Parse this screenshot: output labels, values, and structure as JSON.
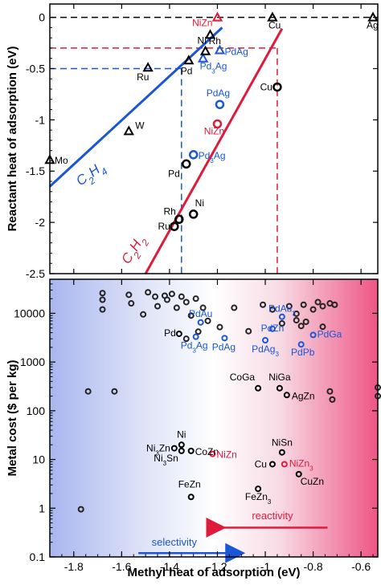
{
  "chart_data": [
    {
      "type": "scatter",
      "xlabel": "",
      "ylabel": "Reactant heat of adsorption (eV)",
      "xlim": [
        -1.9,
        -0.53
      ],
      "ylim": [
        -2.5,
        0.13
      ],
      "yticks": [
        "0",
        "-0.5",
        "-1",
        "-1.5",
        "-2",
        "-2.5"
      ],
      "ytick_values": [
        0,
        -0.5,
        -1,
        -1.5,
        -2,
        -2.5
      ],
      "ethylene_series": {
        "name": "C2H4",
        "label_main": "C",
        "label_sub1": "2",
        "label_mid": "H",
        "label_sub2": "4",
        "color": "#1a56d6",
        "points": [
          {
            "label": "Mo",
            "x": -1.9,
            "y": -1.39,
            "color": "#000000"
          },
          {
            "label": "W",
            "x": -1.57,
            "y": -1.11,
            "color": "#000000"
          },
          {
            "label": "Ru",
            "x": -1.49,
            "y": -0.49,
            "color": "#000000"
          },
          {
            "label": "Pd",
            "x": -1.32,
            "y": -0.42,
            "color": "#000000"
          },
          {
            "label": "Pd3Ag",
            "label_main": "Pd",
            "label_sub": "3",
            "label_tail": "Ag",
            "x": -1.26,
            "y": -0.4,
            "color": "#1a56d6"
          },
          {
            "label": "Rh",
            "x": -1.25,
            "y": -0.33,
            "color": "#000000"
          },
          {
            "label": "PdAg",
            "x": -1.19,
            "y": -0.32,
            "color": "#1a56d6"
          },
          {
            "label": "Ni",
            "x": -1.23,
            "y": -0.17,
            "color": "#000000"
          },
          {
            "label": "NiZn",
            "x": -1.2,
            "y": 0.0,
            "color": "#e01a3a"
          },
          {
            "label": "Cu",
            "x": -0.97,
            "y": 0.0,
            "color": "#000000"
          },
          {
            "label": "Ag",
            "x": -0.55,
            "y": 0.0,
            "color": "#000000"
          }
        ]
      },
      "acetylene_series": {
        "name": "C2H2",
        "label_main": "C",
        "label_sub1": "2",
        "label_mid": "H",
        "label_sub2": "2",
        "color": "#e01a3a",
        "points": [
          {
            "label": "Ru",
            "x": -1.38,
            "y": -2.04,
            "color": "#000000"
          },
          {
            "label": "Rh",
            "x": -1.36,
            "y": -1.97,
            "color": "#000000"
          },
          {
            "label": "Ni",
            "x": -1.3,
            "y": -1.92,
            "color": "#000000"
          },
          {
            "label": "Pd",
            "x": -1.33,
            "y": -1.43,
            "color": "#000000"
          },
          {
            "label": "Pd3Ag",
            "label_main": "Pd",
            "label_sub": "3",
            "label_tail": "Ag",
            "x": -1.3,
            "y": -1.34,
            "color": "#1a56d6"
          },
          {
            "label": "NiZn",
            "x": -1.2,
            "y": -1.04,
            "color": "#e01a3a"
          },
          {
            "label": "PdAg",
            "x": -1.19,
            "y": -0.85,
            "color": "#1a56d6"
          },
          {
            "label": "Cu",
            "x": -0.95,
            "y": -0.68,
            "color": "#000000"
          }
        ]
      }
    },
    {
      "type": "scatter",
      "xlabel": "Methyl heat of adsorption (eV)",
      "ylabel": "Metal cost ($ per kg)",
      "xlim": [
        -1.9,
        -0.53
      ],
      "ylim": [
        0.1,
        50000
      ],
      "yscale": "log",
      "xticks": [
        "-1.8",
        "-1.6",
        "-1.4",
        "-1.2",
        "-1",
        "-0.8",
        "-0.6"
      ],
      "xtick_values": [
        -1.8,
        -1.6,
        -1.4,
        -1.2,
        -1,
        -0.8,
        -0.6
      ],
      "yticks": [
        "0.1",
        "1",
        "10",
        "100",
        "1000",
        "10000"
      ],
      "ytick_values": [
        0.1,
        1,
        10,
        100,
        1000,
        10000
      ],
      "labeled_points": [
        {
          "label": "PdAu",
          "x": -1.27,
          "y": 6500,
          "color": "#1a56d6"
        },
        {
          "label": "PdAu3",
          "label_main": "PdAu",
          "label_sub": "3",
          "label_tail": "",
          "x": -0.93,
          "y": 8500,
          "color": "#1a56d6"
        },
        {
          "label": "Pd",
          "x": -1.36,
          "y": 3800,
          "color": "#000000"
        },
        {
          "label": "Pd3Ag",
          "label_main": "Pd",
          "label_sub": "3",
          "label_tail": "Ag",
          "x": -1.29,
          "y": 3300,
          "color": "#1a56d6"
        },
        {
          "label": "PdAg",
          "x": -1.17,
          "y": 3100,
          "color": "#1a56d6"
        },
        {
          "label": "PdZn",
          "x": -0.97,
          "y": 4800,
          "color": "#1a56d6"
        },
        {
          "label": "PdGa",
          "x": -0.8,
          "y": 3600,
          "color": "#1a56d6"
        },
        {
          "label": "PdAg3",
          "label_main": "PdAg",
          "label_sub": "3",
          "label_tail": "",
          "x": -1.0,
          "y": 2800,
          "color": "#1a56d6"
        },
        {
          "label": "PdPb",
          "x": -0.85,
          "y": 2300,
          "color": "#1a56d6"
        },
        {
          "label": "CoGa",
          "x": -1.03,
          "y": 290,
          "color": "#000000"
        },
        {
          "label": "NiGa",
          "x": -0.94,
          "y": 290,
          "color": "#000000"
        },
        {
          "label": "AgZn",
          "x": -0.91,
          "y": 210,
          "color": "#000000"
        },
        {
          "label": "Ni",
          "x": -1.35,
          "y": 20,
          "color": "#000000"
        },
        {
          "label": "Ni3Zn",
          "label_main": "Ni",
          "label_sub": "3",
          "label_tail": "Zn",
          "x": -1.38,
          "y": 17,
          "color": "#000000"
        },
        {
          "label": "CoZn",
          "x": -1.31,
          "y": 15,
          "color": "#000000"
        },
        {
          "label": "Ni3Sn",
          "label_main": "Ni",
          "label_sub": "3",
          "label_tail": "Sn",
          "x": -1.35,
          "y": 15,
          "color": "#000000"
        },
        {
          "label": "NiZn",
          "x": -1.22,
          "y": 13,
          "color": "#e01a3a"
        },
        {
          "label": "NiSn",
          "x": -0.93,
          "y": 14,
          "color": "#000000"
        },
        {
          "label": "Cu",
          "x": -0.97,
          "y": 8,
          "color": "#000000"
        },
        {
          "label": "NiZn3",
          "label_main": "NiZn",
          "label_sub": "3",
          "label_tail": "",
          "x": -0.92,
          "y": 8,
          "color": "#e01a3a"
        },
        {
          "label": "CuZn",
          "x": -0.86,
          "y": 5,
          "color": "#000000"
        },
        {
          "label": "FeZn",
          "x": -1.31,
          "y": 1.7,
          "color": "#000000"
        },
        {
          "label": "FeZn3",
          "label_main": "FeZn",
          "label_sub": "3",
          "label_tail": "",
          "x": -1.03,
          "y": 2.5,
          "color": "#000000"
        }
      ],
      "unlabeled_points": [
        {
          "x": -1.77,
          "y": 0.95
        },
        {
          "x": -1.74,
          "y": 250
        },
        {
          "x": -1.63,
          "y": 250
        },
        {
          "x": -1.68,
          "y": 26000
        },
        {
          "x": -1.68,
          "y": 19000
        },
        {
          "x": -1.68,
          "y": 12000
        },
        {
          "x": -1.57,
          "y": 24000
        },
        {
          "x": -1.56,
          "y": 16000
        },
        {
          "x": -1.51,
          "y": 9500
        },
        {
          "x": -1.49,
          "y": 27000
        },
        {
          "x": -1.46,
          "y": 22000
        },
        {
          "x": -1.45,
          "y": 14000
        },
        {
          "x": -1.42,
          "y": 23000
        },
        {
          "x": -1.41,
          "y": 19000
        },
        {
          "x": -1.39,
          "y": 25000
        },
        {
          "x": -1.37,
          "y": 13000
        },
        {
          "x": -1.35,
          "y": 22000
        },
        {
          "x": -1.33,
          "y": 17000
        },
        {
          "x": -1.31,
          "y": 9000
        },
        {
          "x": -1.29,
          "y": 20000
        },
        {
          "x": -1.26,
          "y": 13000
        },
        {
          "x": -1.24,
          "y": 7000
        },
        {
          "x": -1.33,
          "y": 3000
        },
        {
          "x": -1.28,
          "y": 4200
        },
        {
          "x": -1.19,
          "y": 5200
        },
        {
          "x": -1.13,
          "y": 13000
        },
        {
          "x": -1.07,
          "y": 4300
        },
        {
          "x": -1.01,
          "y": 15000
        },
        {
          "x": -0.97,
          "y": 12000
        },
        {
          "x": -0.9,
          "y": 14000
        },
        {
          "x": -0.87,
          "y": 9800
        },
        {
          "x": -0.84,
          "y": 15000
        },
        {
          "x": -0.8,
          "y": 12000
        },
        {
          "x": -0.78,
          "y": 17000
        },
        {
          "x": -0.76,
          "y": 14000
        },
        {
          "x": -0.73,
          "y": 16000
        },
        {
          "x": -0.71,
          "y": 15000
        },
        {
          "x": -0.87,
          "y": 7200
        },
        {
          "x": -0.85,
          "y": 5500
        },
        {
          "x": -0.83,
          "y": 6700
        },
        {
          "x": -0.76,
          "y": 5300
        },
        {
          "x": -0.93,
          "y": 6200
        },
        {
          "x": -0.73,
          "y": 250
        },
        {
          "x": -0.72,
          "y": 170
        },
        {
          "x": -0.53,
          "y": 300
        },
        {
          "x": -0.53,
          "y": 200
        }
      ],
      "annotations": {
        "reactivity": {
          "text": "reactivity",
          "color": "#e01a3a",
          "direction": "left"
        },
        "selectivity": {
          "text": "selectivity",
          "color": "#1a56d6",
          "direction": "right"
        }
      }
    }
  ]
}
